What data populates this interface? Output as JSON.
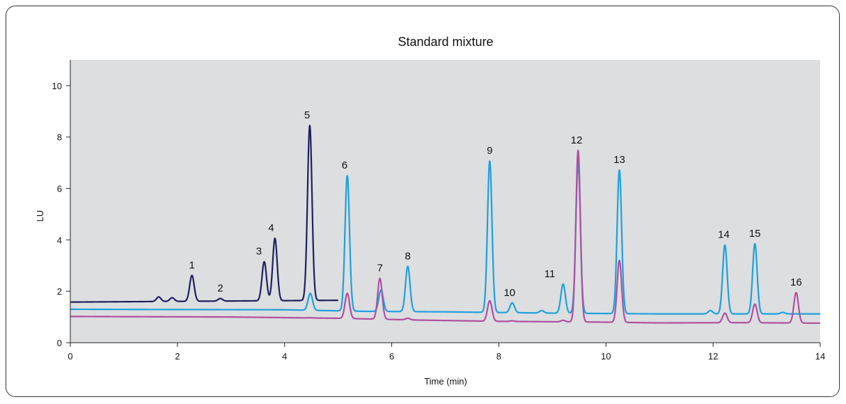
{
  "chart_data": {
    "type": "line",
    "title": "Standard mixture",
    "xlabel": "Time (min)",
    "ylabel": "LU",
    "xlim": [
      0,
      14
    ],
    "ylim": [
      0,
      11
    ],
    "x_ticks": [
      "0",
      "2",
      "4",
      "6",
      "8",
      "10",
      "12",
      "14"
    ],
    "y_ticks": [
      "0",
      "2",
      "4",
      "6",
      "8",
      "10"
    ],
    "grid": false,
    "background": "#dcdee0",
    "series": [
      {
        "color": "#1f1f5e",
        "x_range": [
          0,
          5
        ],
        "baseline": [
          [
            0,
            1.58
          ],
          [
            5,
            1.65
          ]
        ],
        "peaks": [
          {
            "t": 1.65,
            "h": 1.78
          },
          {
            "t": 1.9,
            "h": 1.75
          },
          {
            "t": 2.27,
            "h": 2.62
          },
          {
            "t": 2.8,
            "h": 1.72
          },
          {
            "t": 3.62,
            "h": 3.15
          },
          {
            "t": 3.82,
            "h": 4.06
          },
          {
            "t": 4.47,
            "h": 8.45
          }
        ]
      },
      {
        "color": "#1ea0dc",
        "x_range": [
          0,
          14
        ],
        "baseline": [
          [
            0,
            1.3
          ],
          [
            4.0,
            1.28
          ],
          [
            5.5,
            1.22
          ],
          [
            7.0,
            1.2
          ],
          [
            9.0,
            1.15
          ],
          [
            11.0,
            1.12
          ],
          [
            14.0,
            1.12
          ]
        ],
        "peaks": [
          {
            "t": 4.48,
            "h": 1.92
          },
          {
            "t": 5.17,
            "h": 6.5
          },
          {
            "t": 5.8,
            "h": 2.05
          },
          {
            "t": 6.3,
            "h": 2.97
          },
          {
            "t": 7.83,
            "h": 7.07
          },
          {
            "t": 8.25,
            "h": 1.55
          },
          {
            "t": 8.8,
            "h": 1.25
          },
          {
            "t": 9.2,
            "h": 2.28
          },
          {
            "t": 9.48,
            "h": 7.0
          },
          {
            "t": 10.25,
            "h": 6.72
          },
          {
            "t": 11.95,
            "h": 1.25
          },
          {
            "t": 12.22,
            "h": 3.8
          },
          {
            "t": 12.78,
            "h": 3.85
          },
          {
            "t": 13.3,
            "h": 1.18
          }
        ]
      },
      {
        "color": "#b04ea0",
        "x_range": [
          0,
          14
        ],
        "baseline": [
          [
            0,
            1.02
          ],
          [
            3.0,
            1.0
          ],
          [
            5.0,
            0.95
          ],
          [
            6.5,
            0.88
          ],
          [
            8.0,
            0.83
          ],
          [
            10.0,
            0.8
          ],
          [
            11.0,
            0.77
          ],
          [
            12.5,
            0.78
          ],
          [
            14.0,
            0.76
          ]
        ],
        "peaks": [
          {
            "t": 4.47,
            "h": 0.97
          },
          {
            "t": 5.17,
            "h": 1.92
          },
          {
            "t": 5.78,
            "h": 2.5
          },
          {
            "t": 6.3,
            "h": 0.95
          },
          {
            "t": 7.83,
            "h": 1.63
          },
          {
            "t": 8.25,
            "h": 0.85
          },
          {
            "t": 9.2,
            "h": 0.87
          },
          {
            "t": 9.48,
            "h": 7.48
          },
          {
            "t": 10.25,
            "h": 3.2
          },
          {
            "t": 12.22,
            "h": 1.15
          },
          {
            "t": 12.78,
            "h": 1.5
          },
          {
            "t": 13.55,
            "h": 1.95
          }
        ]
      }
    ],
    "annotations": [
      {
        "text": "1",
        "x": 2.27,
        "y": 2.62
      },
      {
        "text": "2",
        "x": 2.8,
        "y": 1.72
      },
      {
        "text": "3",
        "x": 3.52,
        "y": 3.15
      },
      {
        "text": "4",
        "x": 3.75,
        "y": 4.06
      },
      {
        "text": "5",
        "x": 4.42,
        "y": 8.45
      },
      {
        "text": "6",
        "x": 5.12,
        "y": 6.5
      },
      {
        "text": "7",
        "x": 5.78,
        "y": 2.5
      },
      {
        "text": "8",
        "x": 6.3,
        "y": 2.97
      },
      {
        "text": "9",
        "x": 7.83,
        "y": 7.07
      },
      {
        "text": "10",
        "x": 8.2,
        "y": 1.55
      },
      {
        "text": "11",
        "x": 8.95,
        "y": 2.28
      },
      {
        "text": "12",
        "x": 9.45,
        "y": 7.48
      },
      {
        "text": "13",
        "x": 10.25,
        "y": 6.72
      },
      {
        "text": "14",
        "x": 12.2,
        "y": 3.8
      },
      {
        "text": "15",
        "x": 12.78,
        "y": 3.85
      },
      {
        "text": "16",
        "x": 13.55,
        "y": 1.95
      }
    ]
  }
}
